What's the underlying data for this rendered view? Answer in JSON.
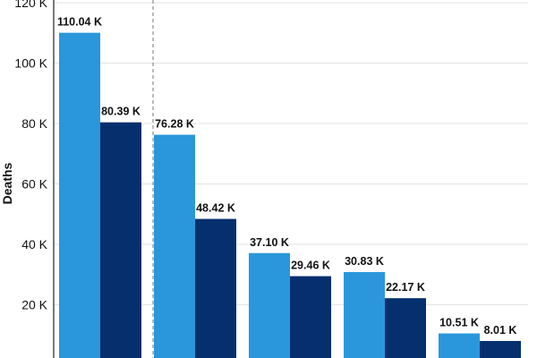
{
  "chart_data": {
    "type": "bar",
    "title": "",
    "xlabel": "",
    "ylabel": "Deaths",
    "ylim": [
      0,
      120000
    ],
    "yticks": [
      {
        "value": 20000,
        "label": "20 K"
      },
      {
        "value": 40000,
        "label": "40 K"
      },
      {
        "value": 60000,
        "label": "60 K"
      },
      {
        "value": 80000,
        "label": "80 K"
      },
      {
        "value": 100000,
        "label": "100 K"
      },
      {
        "value": 120000,
        "label": "120 K"
      }
    ],
    "grid": true,
    "legend": "none",
    "group_count": 5,
    "series": [
      {
        "color": "#2a97dc",
        "values": [
          110040,
          76280,
          37100,
          30830,
          10510
        ],
        "labels": [
          "110.04 K",
          "76.28 K",
          "37.10 K",
          "30.83 K",
          "10.51 K"
        ]
      },
      {
        "color": "#062f6e",
        "values": [
          80390,
          48420,
          29460,
          22170,
          8010
        ],
        "labels": [
          "80.39 K",
          "48.42 K",
          "29.46 K",
          "22.17 K",
          "8.01 K"
        ]
      }
    ],
    "separator_after_group": 1
  }
}
